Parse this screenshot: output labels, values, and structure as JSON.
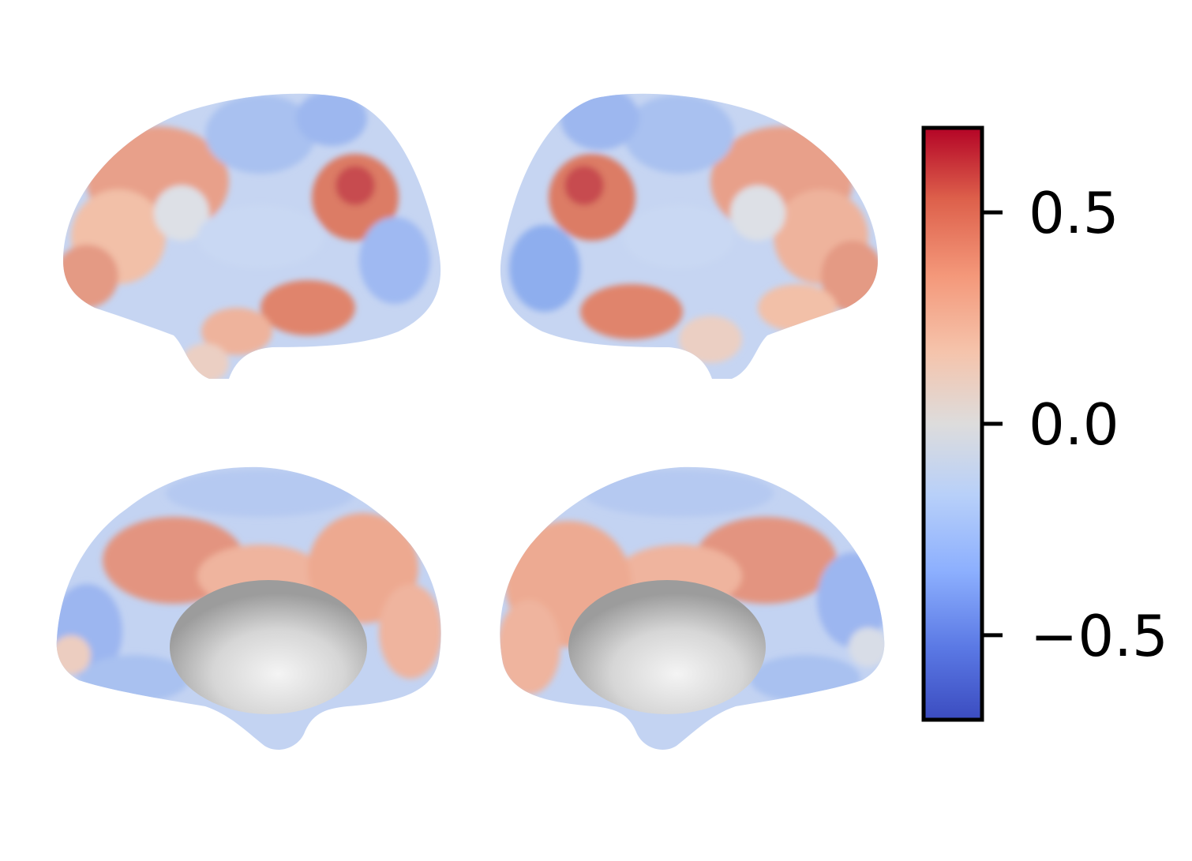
{
  "figure": {
    "views": [
      {
        "name": "left-lateral"
      },
      {
        "name": "right-lateral"
      },
      {
        "name": "left-medial"
      },
      {
        "name": "right-medial"
      }
    ]
  },
  "colorbar": {
    "colormap": "coolwarm",
    "range": [
      -0.7,
      0.7
    ],
    "ticks": [
      {
        "value": 0.5,
        "label": "0.5"
      },
      {
        "value": 0.0,
        "label": "0.0"
      },
      {
        "value": -0.5,
        "label": "−0.5"
      }
    ],
    "colors": {
      "max": "#b40426",
      "high": "#e8765c",
      "mid": "#dddcdc",
      "low": "#8caffe",
      "min": "#3b4cc0"
    }
  }
}
